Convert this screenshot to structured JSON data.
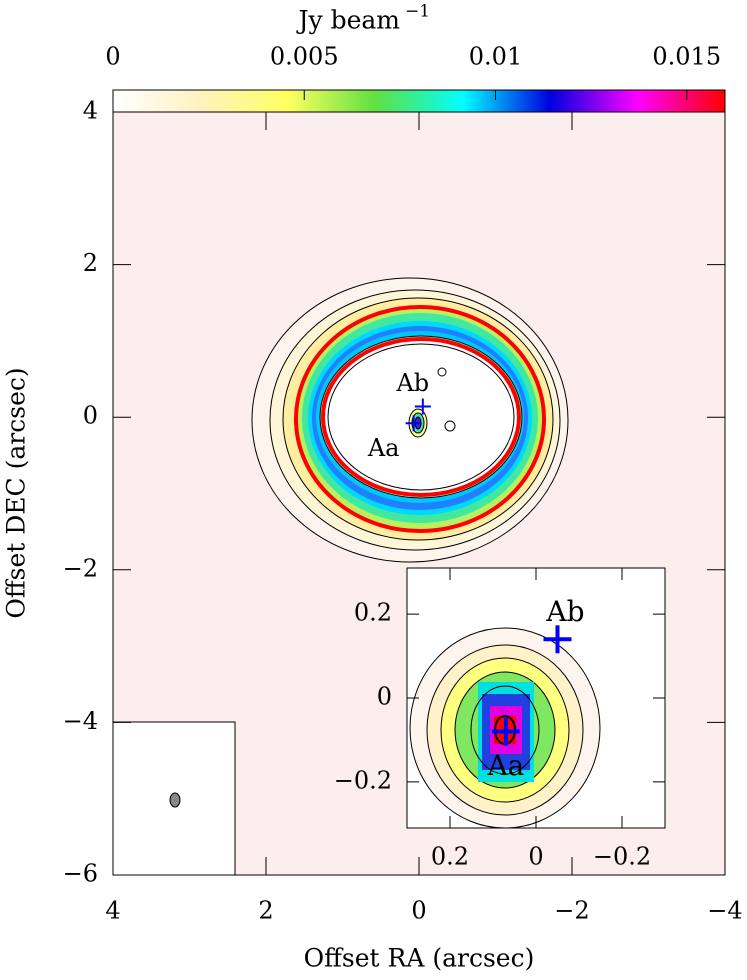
{
  "chart_data": {
    "type": "map",
    "colorbar_label": "Jy beam",
    "colorbar_label_exponent": "−1",
    "colorbar_lim": [
      0,
      0.016
    ],
    "colorbar_ticks": [
      0,
      0.005,
      0.01,
      0.015
    ],
    "colormap": [
      "#ffffff",
      "#fff2c0",
      "#ffff60",
      "#60e040",
      "#00ffff",
      "#0000e0",
      "#ff00ff",
      "#ff0000"
    ],
    "x_label": "Offset RA (arcsec)",
    "y_label": "Offset DEC (arcsec)",
    "xlim": [
      4,
      -4
    ],
    "ylim": [
      -6,
      4
    ],
    "xticks": [
      4,
      2,
      0,
      {
        "value": -2,
        "label": "−2"
      },
      {
        "value": -4,
        "label": "−4"
      }
    ],
    "yticks": [
      4,
      2,
      0,
      {
        "value": -2,
        "label": "−2"
      },
      {
        "value": -4,
        "label": "−4"
      },
      {
        "value": -6,
        "label": "−6"
      }
    ],
    "sources": [
      {
        "name": "Aa",
        "x": 0.07,
        "y": -0.08,
        "color": "#0000ff"
      },
      {
        "name": "Ab",
        "x": -0.05,
        "y": 0.14,
        "color": "#0000ff"
      }
    ],
    "inset": {
      "xlim": [
        0.3,
        -0.3
      ],
      "ylim": [
        -0.31,
        0.31
      ],
      "xticks": [
        0.2,
        0,
        {
          "value": -0.2,
          "label": "−0.2"
        }
      ],
      "yticks": [
        0.2,
        0,
        {
          "value": -0.2,
          "label": "−0.2"
        }
      ]
    }
  }
}
